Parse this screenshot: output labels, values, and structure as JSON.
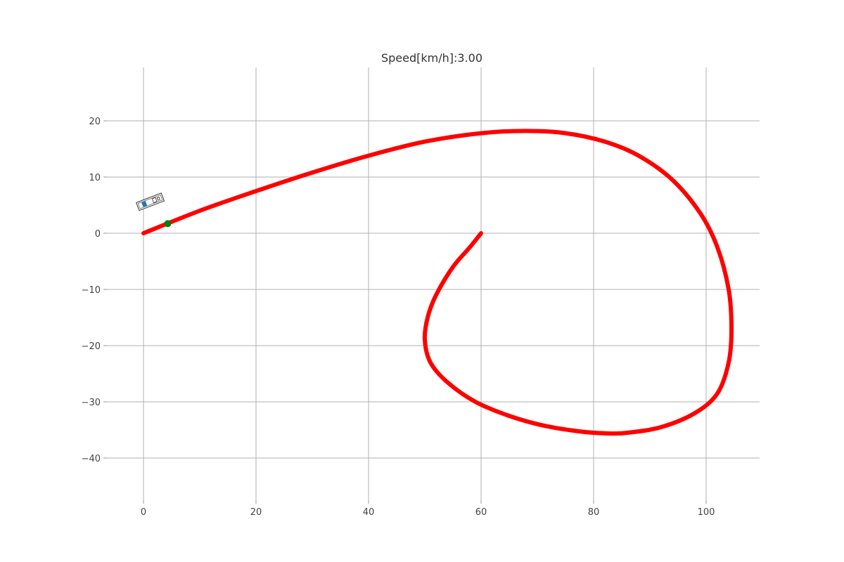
{
  "chart_data": {
    "type": "line",
    "title": "Speed[km/h]:3.00",
    "xlabel": "",
    "ylabel": "",
    "xlim": [
      -6.5,
      109.5
    ],
    "ylim": [
      -47.5,
      29.5
    ],
    "grid": true,
    "x_ticks": [
      0,
      20,
      40,
      60,
      80,
      100
    ],
    "y_ticks": [
      20,
      10,
      0,
      -10,
      -20,
      -30,
      -40
    ],
    "x_tick_labels": [
      "0",
      "20",
      "40",
      "60",
      "80",
      "100"
    ],
    "y_tick_labels": [
      "20",
      "10",
      "0",
      "−10",
      "−20",
      "−30",
      "−40"
    ],
    "series": [
      {
        "color": "#ff0000",
        "x": [
          0,
          10,
          20,
          30,
          40,
          50,
          60,
          68,
          75,
          82,
          88,
          94,
          99,
          102,
          104,
          104.5,
          104,
          102,
          98,
          92,
          86,
          82,
          77,
          71,
          65,
          59,
          54,
          51,
          50,
          50.5,
          52,
          55,
          58,
          60
        ],
        "y": [
          0,
          4,
          7.5,
          10.8,
          13.8,
          16.3,
          17.8,
          18.2,
          17.8,
          16.3,
          13.8,
          9.5,
          3.5,
          -2.5,
          -10,
          -17,
          -23,
          -28.5,
          -32,
          -34.5,
          -35.5,
          -35.6,
          -35.2,
          -34.2,
          -32.5,
          -30,
          -26.5,
          -23,
          -19,
          -15,
          -11,
          -6,
          -2.5,
          0
        ]
      }
    ],
    "markers": [
      {
        "label": "current-position",
        "color": "#008000",
        "x": 4.3,
        "y": 1.7
      }
    ],
    "vehicle": {
      "x": 1.2,
      "y": 5.6,
      "heading_deg": 21,
      "body_color": "#333333",
      "fill_color": "#ffffff",
      "wheel_color": "#1f77b4"
    }
  }
}
